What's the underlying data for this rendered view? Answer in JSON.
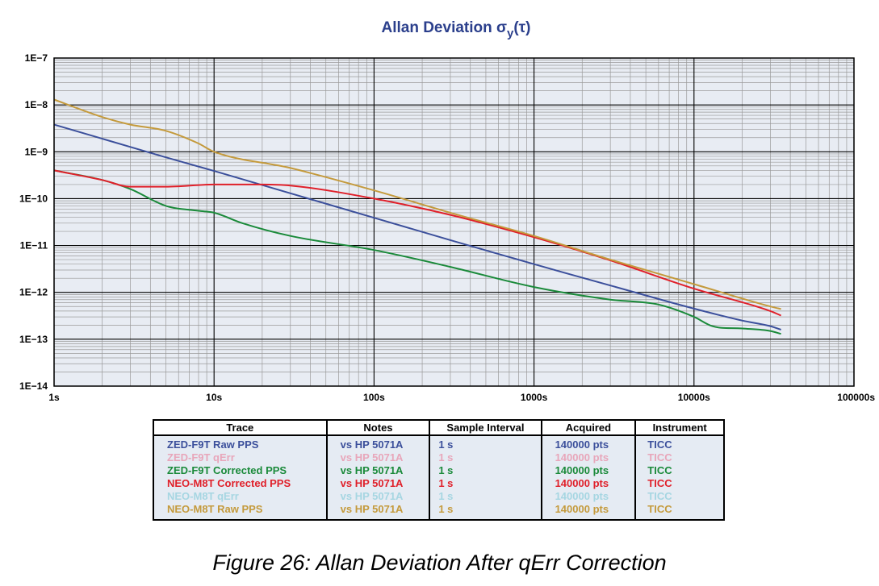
{
  "chart_data": {
    "type": "line",
    "title_main": "Allan Deviation σ",
    "title_sub": "y",
    "title_tail": "(τ)",
    "x_scale": "log",
    "y_scale": "log",
    "xlim": [
      1,
      100000
    ],
    "ylim": [
      1e-14,
      1e-07
    ],
    "x_ticks": [
      {
        "value": 1,
        "label": "1s"
      },
      {
        "value": 10,
        "label": "10s"
      },
      {
        "value": 100,
        "label": "100s"
      },
      {
        "value": 1000,
        "label": "1000s"
      },
      {
        "value": 10000,
        "label": "10000s"
      },
      {
        "value": 100000,
        "label": "100000s"
      }
    ],
    "y_ticks": [
      {
        "value": 1e-07,
        "label": "1E−7"
      },
      {
        "value": 1e-08,
        "label": "1E−8"
      },
      {
        "value": 1e-09,
        "label": "1E−9"
      },
      {
        "value": 1e-10,
        "label": "1E−10"
      },
      {
        "value": 1e-11,
        "label": "1E−11"
      },
      {
        "value": 1e-12,
        "label": "1E−12"
      },
      {
        "value": 1e-13,
        "label": "1E−13"
      },
      {
        "value": 1e-14,
        "label": "1E−14"
      }
    ],
    "grid": true,
    "legend_placement": "table-below",
    "series": [
      {
        "name": "ZED-F9T Raw PPS",
        "color": "#3b4f9b",
        "x": [
          1,
          2,
          5,
          10,
          30,
          100,
          300,
          1000,
          3000,
          10000,
          20000,
          30000,
          35000
        ],
        "y": [
          3.8e-09,
          1.9e-09,
          7.6e-10,
          3.9e-10,
          1.3e-10,
          3.9e-11,
          1.3e-11,
          4e-12,
          1.4e-12,
          4.5e-13,
          2.5e-13,
          1.9e-13,
          1.6e-13
        ]
      },
      {
        "name": "ZED-F9T Corrected PPS",
        "color": "#1a8a3a",
        "x": [
          1,
          2,
          3,
          5,
          8,
          10,
          15,
          30,
          100,
          300,
          1000,
          3000,
          6000,
          10000,
          13000,
          20000,
          30000,
          35000
        ],
        "y": [
          4e-10,
          2.5e-10,
          1.6e-10,
          7e-11,
          5.5e-11,
          5e-11,
          3e-11,
          1.6e-11,
          8e-12,
          3.5e-12,
          1.3e-12,
          7e-13,
          5.5e-13,
          3e-13,
          1.9e-13,
          1.7e-13,
          1.5e-13,
          1.3e-13
        ]
      },
      {
        "name": "NEO-M8T Corrected PPS",
        "color": "#e0202a",
        "x": [
          1,
          2,
          3,
          5,
          10,
          20,
          30,
          100,
          300,
          1000,
          3000,
          10000,
          30000,
          35000
        ],
        "y": [
          4e-10,
          2.5e-10,
          1.8e-10,
          1.8e-10,
          2e-10,
          2e-10,
          1.9e-10,
          1e-10,
          4.5e-11,
          1.5e-11,
          4.8e-12,
          1.2e-12,
          4e-13,
          3.2e-13
        ]
      },
      {
        "name": "NEO-M8T Raw PPS",
        "color": "#c49a3c",
        "x": [
          1,
          2,
          3,
          5,
          8,
          10,
          30,
          100,
          300,
          1000,
          3000,
          10000,
          30000,
          35000
        ],
        "y": [
          1.3e-08,
          5.5e-09,
          3.8e-09,
          2.8e-09,
          1.5e-09,
          1e-09,
          4.5e-10,
          1.5e-10,
          5e-11,
          1.6e-11,
          5e-12,
          1.5e-12,
          5e-13,
          4.4e-13
        ]
      }
    ]
  },
  "legend_table": {
    "headers": [
      "Trace",
      "Notes",
      "Sample Interval",
      "Acquired",
      "Instrument"
    ],
    "rows": [
      {
        "trace": "ZED-F9T Raw PPS",
        "notes": "vs HP 5071A",
        "interval": "1 s",
        "acquired": "140000 pts",
        "instrument": "TICC",
        "color": "#3b4f9b"
      },
      {
        "trace": "ZED-F9T qErr",
        "notes": "vs HP 5071A",
        "interval": "1 s",
        "acquired": "140000 pts",
        "instrument": "TICC",
        "color": "#e8a6ba"
      },
      {
        "trace": "ZED-F9T Corrected PPS",
        "notes": "vs HP 5071A",
        "interval": "1 s",
        "acquired": "140000 pts",
        "instrument": "TICC",
        "color": "#1a8a3a"
      },
      {
        "trace": "NEO-M8T Corrected PPS",
        "notes": "vs HP 5071A",
        "interval": "1 s",
        "acquired": "140000 pts",
        "instrument": "TICC",
        "color": "#e0202a"
      },
      {
        "trace": "NEO-M8T qErr",
        "notes": "vs HP 5071A",
        "interval": "1 s",
        "acquired": "140000 pts",
        "instrument": "TICC",
        "color": "#a6d6e2"
      },
      {
        "trace": "NEO-M8T Raw PPS",
        "notes": "vs HP 5071A",
        "interval": "1 s",
        "acquired": "140000 pts",
        "instrument": "TICC",
        "color": "#c49a3c"
      }
    ]
  },
  "caption": "Figure 26: Allan Deviation After qErr Correction",
  "colors": {
    "plot_background": "#e8ecf3",
    "table_background": "#e5ebf3",
    "title": "#2b3f8c",
    "major_grid": "#000000",
    "minor_grid": "#9a9a9a"
  }
}
